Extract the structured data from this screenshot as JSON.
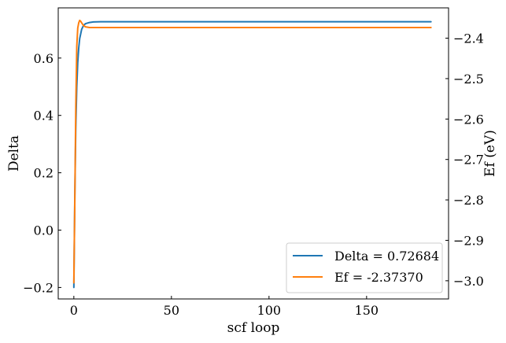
{
  "chart_data": {
    "type": "line",
    "xlabel": "scf loop",
    "ylabel_left": "Delta",
    "ylabel_right": "Ef (eV)",
    "xlim": [
      -8,
      192
    ],
    "ylim_left": [
      -0.24,
      0.775
    ],
    "ylim_right": [
      -3.045,
      -2.325
    ],
    "x_ticks": [
      0,
      50,
      100,
      150
    ],
    "x_tick_labels": [
      "0",
      "50",
      "100",
      "150"
    ],
    "y_left_ticks": [
      -0.2,
      0.0,
      0.2,
      0.4,
      0.6
    ],
    "y_left_tick_labels": [
      "−0.2",
      "0.0",
      "0.2",
      "0.4",
      "0.6"
    ],
    "y_right_ticks": [
      -3.0,
      -2.9,
      -2.8,
      -2.7,
      -2.6,
      -2.5,
      -2.4
    ],
    "y_right_tick_labels": [
      "−3.0",
      "−2.9",
      "−2.8",
      "−2.7",
      "−2.6",
      "−2.5",
      "−2.4"
    ],
    "legend_position": "lower-right",
    "series": [
      {
        "name": "Delta",
        "label": "Delta = 0.72684",
        "axis": "left",
        "color": "#1f77b4",
        "x": [
          0,
          0.5,
          1,
          1.5,
          2,
          2.5,
          3,
          4,
          5,
          6,
          8,
          10,
          15,
          20,
          50,
          100,
          150,
          183
        ],
        "y": [
          -0.2,
          0.12,
          0.36,
          0.5,
          0.585,
          0.635,
          0.668,
          0.7,
          0.714,
          0.72,
          0.724,
          0.726,
          0.7268,
          0.7268,
          0.7268,
          0.7268,
          0.7268,
          0.7268
        ]
      },
      {
        "name": "Ef",
        "label": "Ef = -2.37370",
        "axis": "right",
        "color": "#ff7f0e",
        "x": [
          0,
          0.5,
          1,
          1.5,
          2,
          2.5,
          3,
          3.5,
          4,
          5,
          6,
          8,
          10,
          20,
          50,
          100,
          150,
          183
        ],
        "y": [
          -3.005,
          -2.8,
          -2.57,
          -2.42,
          -2.375,
          -2.362,
          -2.356,
          -2.358,
          -2.362,
          -2.369,
          -2.372,
          -2.3737,
          -2.3737,
          -2.3737,
          -2.3737,
          -2.3737,
          -2.3737,
          -2.3737
        ]
      }
    ]
  }
}
